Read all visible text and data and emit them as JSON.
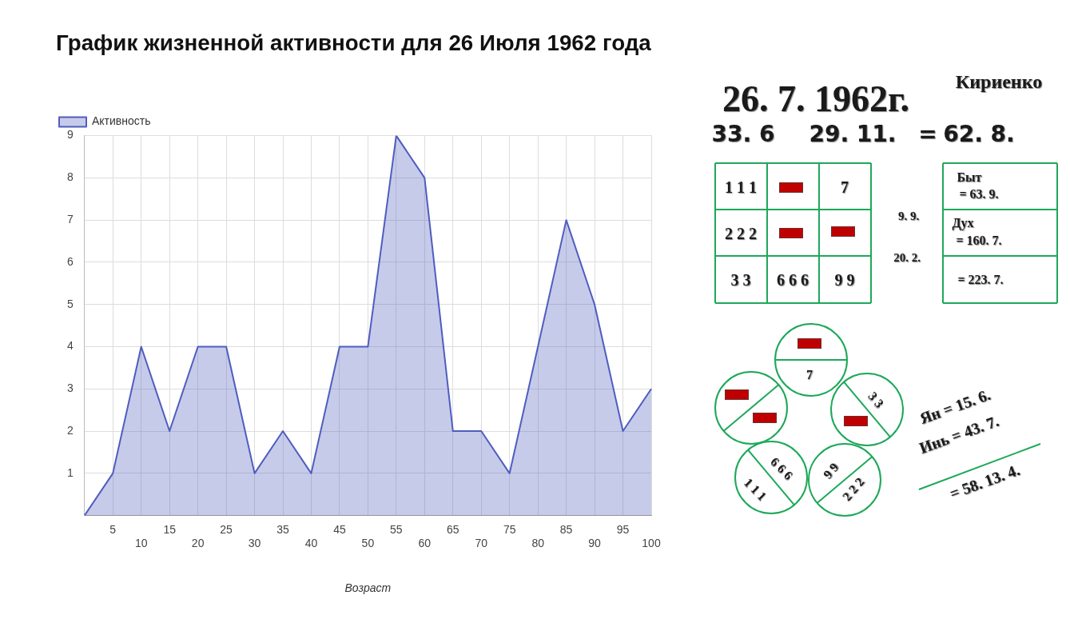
{
  "chart_data": [
    {
      "type": "area",
      "title": "График жизненной активности для 26 Июля 1962 года",
      "xlabel": "Возраст",
      "categories": [
        null,
        "5",
        "10",
        "15",
        "20",
        "25",
        "30",
        "35",
        "40",
        "45",
        "50",
        "55",
        "60",
        "65",
        "70",
        "75",
        "80",
        "85",
        "90",
        "95",
        "100"
      ],
      "series": [
        {
          "name": "Активность",
          "color": "#4f5dbf",
          "values": [
            0,
            1,
            4,
            2,
            4,
            4,
            1,
            2,
            1,
            4,
            4,
            9,
            8,
            2,
            2,
            1,
            4,
            7,
            5,
            2,
            3
          ]
        }
      ],
      "ylim": [
        0,
        9
      ],
      "yticks": [
        1,
        2,
        3,
        4,
        5,
        6,
        7,
        8,
        9
      ],
      "grid": true,
      "legend": "top left"
    },
    {
      "type": "other",
      "annotations": [
        "Кириенко",
        "26. 7. 1962г.",
        "33. 6",
        "29. 11.",
        "=",
        "62. 8.",
        "1 1 1",
        "7",
        "2 2 2",
        "3 3",
        "6 6 6",
        "9 9",
        "9. 9.",
        "20. 2.",
        "Быт",
        "= 63. 9.",
        "Дух",
        "= 160. 7.",
        "= 223. 7.",
        "7",
        "3 3",
        "6 6 6",
        "1 1 1",
        "9 9",
        "2 2 2",
        "Ян = 15. 6.",
        "Инь = 43. 7.",
        "= 58. 13. 4."
      ]
    }
  ]
}
